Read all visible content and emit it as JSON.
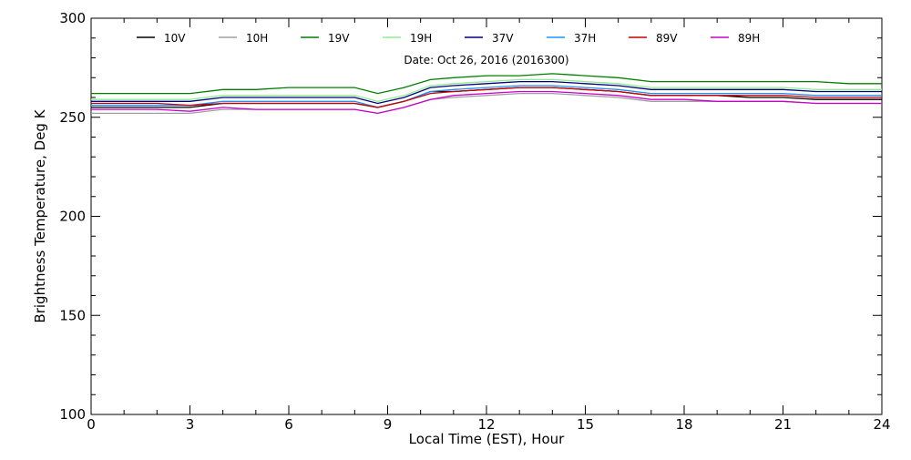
{
  "chart_data": {
    "type": "line",
    "title": "",
    "annotation": "Date: Oct 26, 2016 (2016300)",
    "xlabel": "Local Time (EST), Hour",
    "ylabel": "Brightness Temperature, Deg K",
    "xlim": [
      0,
      24
    ],
    "ylim": [
      100,
      300
    ],
    "x_ticks": [
      0,
      3,
      6,
      9,
      12,
      15,
      18,
      21,
      24
    ],
    "y_ticks": [
      100,
      150,
      200,
      250,
      300
    ],
    "grid": false,
    "legend_position": "top",
    "x": [
      0,
      1,
      2,
      3,
      4,
      5,
      6,
      7,
      8,
      8.7,
      9.5,
      10.3,
      11,
      12,
      13,
      14,
      15,
      16,
      17,
      18,
      19,
      20,
      21,
      22,
      23,
      24
    ],
    "series": [
      {
        "name": "10V",
        "color": "#000000",
        "values": [
          255,
          255,
          255,
          255,
          257,
          257,
          257,
          257,
          257,
          255,
          258,
          263,
          263,
          264,
          265,
          265,
          264,
          263,
          261,
          261,
          261,
          260,
          260,
          259,
          259,
          259
        ]
      },
      {
        "name": "10H",
        "color": "#a0a0a0",
        "values": [
          252,
          252,
          252,
          252,
          254,
          254,
          254,
          254,
          254,
          252,
          255,
          259,
          260,
          261,
          262,
          262,
          261,
          260,
          258,
          258,
          258,
          258,
          258,
          257,
          257,
          257
        ]
      },
      {
        "name": "19V",
        "color": "#008000",
        "values": [
          262,
          262,
          262,
          262,
          264,
          264,
          265,
          265,
          265,
          262,
          265,
          269,
          270,
          271,
          271,
          272,
          271,
          270,
          268,
          268,
          268,
          268,
          268,
          268,
          267,
          267
        ]
      },
      {
        "name": "19H",
        "color": "#90ee90",
        "values": [
          259,
          259,
          259,
          259,
          261,
          261,
          261,
          261,
          261,
          258,
          261,
          266,
          267,
          268,
          269,
          269,
          268,
          267,
          265,
          265,
          265,
          265,
          265,
          264,
          264,
          264
        ]
      },
      {
        "name": "37V",
        "color": "#000080",
        "values": [
          258,
          258,
          258,
          258,
          260,
          260,
          260,
          260,
          260,
          257,
          260,
          265,
          266,
          267,
          268,
          268,
          267,
          266,
          264,
          264,
          264,
          264,
          264,
          263,
          263,
          263
        ]
      },
      {
        "name": "37H",
        "color": "#1e90ff",
        "values": [
          256,
          256,
          256,
          256,
          258,
          258,
          258,
          258,
          258,
          255,
          258,
          263,
          264,
          265,
          266,
          266,
          265,
          264,
          262,
          262,
          262,
          262,
          262,
          261,
          261,
          261
        ]
      },
      {
        "name": "89V",
        "color": "#cc0000",
        "values": [
          257,
          257,
          257,
          256,
          257,
          257,
          257,
          257,
          257,
          255,
          258,
          262,
          263,
          264,
          265,
          265,
          264,
          263,
          261,
          261,
          261,
          261,
          261,
          260,
          260,
          260
        ]
      },
      {
        "name": "89H",
        "color": "#cc00cc",
        "values": [
          254,
          254,
          254,
          253,
          255,
          254,
          254,
          254,
          254,
          252,
          255,
          259,
          261,
          262,
          263,
          263,
          262,
          261,
          259,
          259,
          258,
          258,
          258,
          257,
          257,
          257
        ]
      }
    ]
  }
}
